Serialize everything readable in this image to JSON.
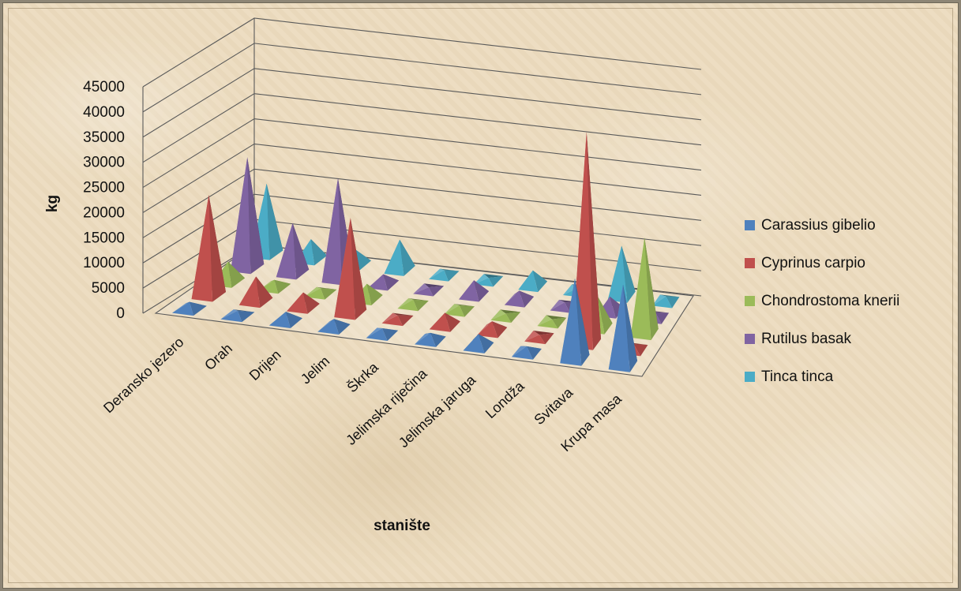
{
  "chart_data": {
    "type": "bar",
    "bar_shape": "pyramid-3d",
    "xlabel": "stanište",
    "ylabel": "kg",
    "ylim": [
      0,
      45000
    ],
    "yticks": [
      0,
      5000,
      10000,
      15000,
      20000,
      25000,
      30000,
      35000,
      40000,
      45000
    ],
    "grid": true,
    "legend_position": "right",
    "categories": [
      "Deransko jezero",
      "Orah",
      "Drijen",
      "Jelim",
      "Škrka",
      "Jelimska riječina",
      "Jelimska jaruga",
      "Londža",
      "Svitava",
      "Krupa masa"
    ],
    "series": [
      {
        "name": "Carassius gibelio",
        "color": "#4f81bd",
        "values": [
          1500,
          1000,
          2000,
          1800,
          1200,
          1500,
          2500,
          1300,
          16000,
          16000
        ]
      },
      {
        "name": "Cyprinus carpio",
        "color": "#c0504d",
        "values": [
          20000,
          5000,
          3000,
          19000,
          800,
          2500,
          2000,
          500,
          42000,
          1000
        ]
      },
      {
        "name": "Chondrostoma knerii",
        "color": "#9bbb59",
        "values": [
          4000,
          1500,
          1000,
          3000,
          1000,
          1000,
          500,
          500,
          6000,
          19000
        ]
      },
      {
        "name": "Rutilus basak",
        "color": "#8064a2",
        "values": [
          22000,
          10000,
          20000,
          2000,
          500,
          3000,
          2000,
          800,
          3000,
          1000
        ]
      },
      {
        "name": "Tinca tinca",
        "color": "#4bacc6",
        "values": [
          14000,
          4000,
          3000,
          6000,
          1000,
          500,
          3000,
          500,
          10000,
          1000
        ]
      }
    ]
  }
}
